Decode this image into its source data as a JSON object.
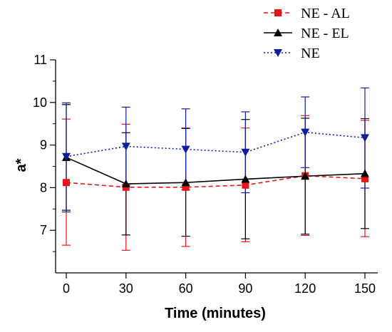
{
  "chart_data": {
    "type": "line",
    "title": "",
    "xlabel": "Time (minutes)",
    "ylabel": "a*",
    "x": [
      0,
      30,
      60,
      90,
      120,
      150
    ],
    "xticks": [
      "0",
      "30",
      "60",
      "90",
      "120",
      "150"
    ],
    "yticks": [
      "7",
      "8",
      "9",
      "10",
      "11"
    ],
    "xlim": [
      0,
      150
    ],
    "ylim": [
      6,
      11
    ],
    "grid": false,
    "legend_position": "top-right",
    "error_bars": true,
    "series": [
      {
        "name": "NE - AL",
        "color": "#e8141a",
        "line_style": "dashed",
        "marker": "square",
        "values": [
          8.12,
          8.01,
          8.01,
          8.06,
          8.28,
          8.21
        ],
        "error_low": [
          6.65,
          6.53,
          6.62,
          6.73,
          6.88,
          6.85
        ],
        "error_high": [
          9.61,
          9.49,
          9.4,
          9.4,
          9.69,
          9.58
        ]
      },
      {
        "name": "NE - EL",
        "color": "#000000",
        "line_style": "solid",
        "marker": "triangle",
        "values": [
          8.71,
          8.09,
          8.12,
          8.2,
          8.27,
          8.33
        ],
        "error_low": [
          7.47,
          6.89,
          6.86,
          6.8,
          6.91,
          7.04
        ],
        "error_high": [
          9.95,
          9.29,
          9.39,
          9.6,
          9.63,
          9.62
        ]
      },
      {
        "name": "NE",
        "color": "#0f1e96",
        "line_style": "dotted",
        "marker": "triangle-down",
        "values": [
          8.73,
          8.97,
          8.9,
          8.83,
          9.3,
          9.17
        ],
        "error_low": [
          7.43,
          8.06,
          7.95,
          7.88,
          8.47,
          7.99
        ],
        "error_high": [
          9.99,
          9.89,
          9.85,
          9.78,
          10.13,
          10.34
        ]
      }
    ]
  }
}
